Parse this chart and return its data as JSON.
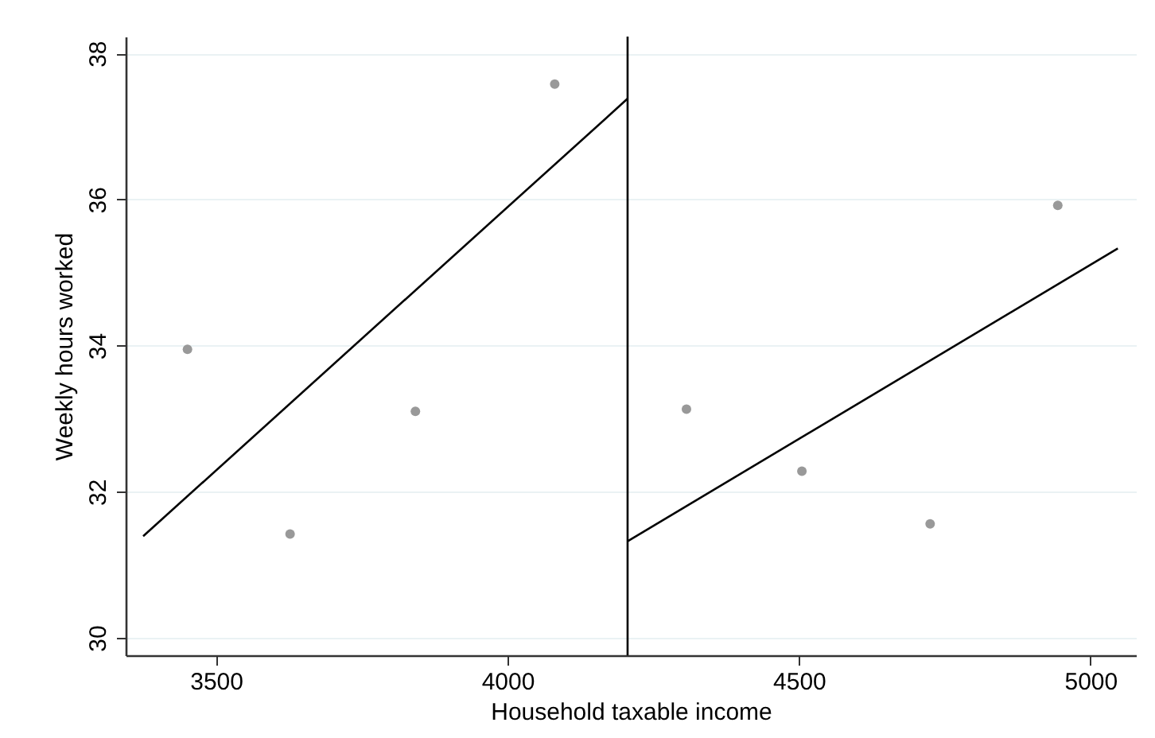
{
  "chart_data": {
    "type": "scatter",
    "xlabel": "Household taxable income",
    "ylabel": "Weekly hours worked",
    "xlim": [
      3345,
      5078
    ],
    "xticks": [
      3500,
      4000,
      4500,
      5000
    ],
    "ylim": [
      29.76,
      38.23
    ],
    "yticks": [
      30,
      32,
      34,
      36,
      38
    ],
    "grid": "y",
    "series": [
      {
        "marker": "circle",
        "color": "#999999",
        "x": [
          3451,
          3627,
          3842,
          4081,
          4307,
          4505,
          4725,
          4944
        ],
        "values": [
          33.95,
          31.42,
          33.1,
          37.58,
          33.13,
          32.28,
          31.56,
          35.92
        ]
      },
      {
        "type": "line",
        "color": "#000000",
        "x": [
          3375,
          4206
        ],
        "values": [
          31.39,
          37.38
        ]
      },
      {
        "type": "line",
        "color": "#000000",
        "x": [
          4206,
          5047
        ],
        "values": [
          31.32,
          35.33
        ]
      }
    ],
    "ref_lines": [
      {
        "axis": "x",
        "value": 4206,
        "color": "#000000"
      }
    ]
  }
}
